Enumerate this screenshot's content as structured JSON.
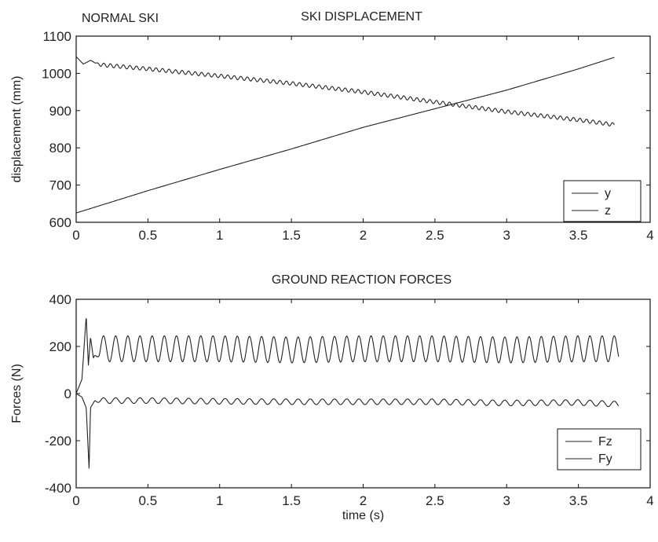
{
  "figure": {
    "corner_label": "NORMAL SKI",
    "colors": {
      "line": "#222222",
      "axes": "#111111",
      "background": "#ffffff"
    }
  },
  "chart_data": [
    {
      "type": "line",
      "title": "SKI DISPLACEMENT",
      "xlabel": "",
      "ylabel": "displacement (mm)",
      "xlim": [
        0,
        4
      ],
      "ylim": [
        600,
        1100
      ],
      "xticks": [
        "0",
        "0.5",
        "1",
        "1.5",
        "2",
        "2.5",
        "3",
        "3.5",
        "4"
      ],
      "yticks": [
        "600",
        "700",
        "800",
        "900",
        "1000",
        "1100"
      ],
      "legend": {
        "placement": "bottom-right",
        "entries": [
          "y",
          "z"
        ]
      },
      "series": [
        {
          "name": "y",
          "x": [
            0,
            0.05,
            0.1,
            0.15,
            0.2,
            0.5,
            1.0,
            1.5,
            2.0,
            2.5,
            3.0,
            3.5,
            3.75
          ],
          "values": [
            1045,
            1025,
            1035,
            1025,
            1022,
            1012,
            993,
            973,
            950,
            923,
            897,
            875,
            862
          ],
          "oscillation_amplitude": 5
        },
        {
          "name": "z",
          "x": [
            0,
            0.5,
            1.0,
            1.5,
            2.0,
            2.5,
            3.0,
            3.5,
            3.75
          ],
          "values": [
            625,
            685,
            742,
            797,
            855,
            905,
            955,
            1012,
            1043
          ],
          "oscillation_amplitude": 0
        }
      ]
    },
    {
      "type": "line",
      "title": "GROUND REACTION FORCES",
      "xlabel": "time (s)",
      "ylabel": "Forces (N)",
      "xlim": [
        0,
        4
      ],
      "ylim": [
        -400,
        400
      ],
      "xticks": [
        "0",
        "0.5",
        "1",
        "1.5",
        "2",
        "2.5",
        "3",
        "3.5",
        "4"
      ],
      "yticks": [
        "-400",
        "-200",
        "0",
        "200",
        "400"
      ],
      "legend": {
        "placement": "bottom-right",
        "entries": [
          "Fz",
          "Fy"
        ]
      },
      "series": [
        {
          "name": "Fz",
          "x": [
            0,
            0.04,
            0.07,
            0.085,
            0.1,
            0.12,
            0.15,
            0.5,
            1.0,
            1.5,
            2.0,
            2.5,
            3.0,
            3.5,
            3.78
          ],
          "values": [
            0,
            60,
            330,
            120,
            240,
            150,
            190,
            190,
            190,
            185,
            190,
            190,
            185,
            190,
            190
          ],
          "oscillation_amplitude": 55,
          "oscillation_frequency_hz": 11.8
        },
        {
          "name": "Fy",
          "x": [
            0,
            0.04,
            0.07,
            0.09,
            0.1,
            0.13,
            0.18,
            0.5,
            1.0,
            1.5,
            2.0,
            2.5,
            3.0,
            3.5,
            3.78
          ],
          "values": [
            0,
            -15,
            -60,
            -320,
            -60,
            -30,
            -30,
            -30,
            -33,
            -35,
            -35,
            -35,
            -40,
            -38,
            -45
          ],
          "oscillation_amplitude": 12,
          "oscillation_frequency_hz": 11.8
        }
      ]
    }
  ]
}
